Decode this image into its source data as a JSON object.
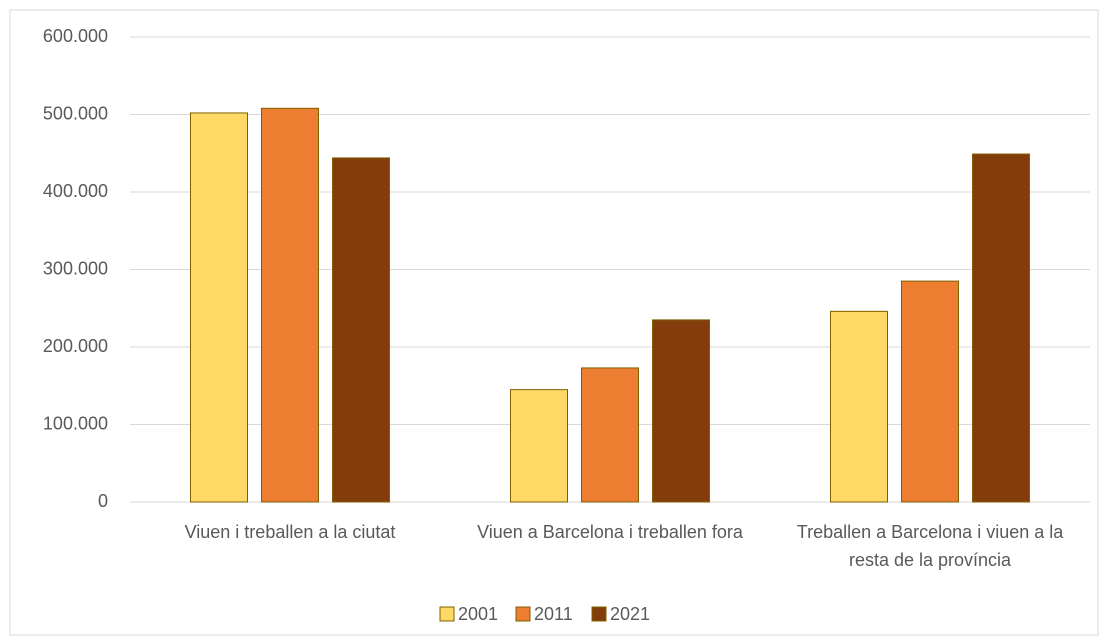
{
  "chart_data": {
    "type": "bar",
    "categories": [
      "Viuen i treballen a la ciutat",
      "Viuen a Barcelona i treballen fora",
      "Treballen a Barcelona i viuen a la resta de la província"
    ],
    "series": [
      {
        "name": "2001",
        "color": "#ffd966",
        "values": [
          502000,
          145000,
          246000
        ]
      },
      {
        "name": "2011",
        "color": "#ed7d31",
        "values": [
          508000,
          173000,
          285000
        ]
      },
      {
        "name": "2021",
        "color": "#843c0c",
        "values": [
          444000,
          235000,
          449000
        ]
      }
    ],
    "ylim": [
      0,
      600000
    ],
    "yticks": [
      0,
      {
        "value": 100000,
        "label": "100.000"
      },
      {
        "value": 200000,
        "label": "200.000"
      },
      {
        "value": 300000,
        "label": "300.000"
      },
      {
        "value": 400000,
        "label": "400.000"
      },
      {
        "value": 500000,
        "label": "500.000"
      },
      {
        "value": 600000,
        "label": "600.000"
      }
    ],
    "grid": true,
    "legend": "bottom"
  }
}
